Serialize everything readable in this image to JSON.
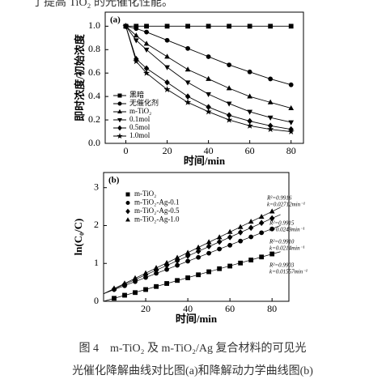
{
  "header_fragment": "了提高 TiO₂ 的光催化性能。",
  "chart_data": [
    {
      "type": "line",
      "panel_label": "(a)",
      "y_label": "即时浓度/初始浓度",
      "x_label": "时间/min",
      "x": [
        0,
        5,
        10,
        20,
        30,
        40,
        50,
        60,
        70,
        80
      ],
      "xlim": [
        -10,
        86
      ],
      "xticks": [
        0,
        20,
        40,
        60,
        80
      ],
      "ylim": [
        0,
        1.12
      ],
      "yticks": [
        {
          "value": 0,
          "label": "0.0"
        },
        {
          "value": 0.2,
          "label": "0.2"
        },
        {
          "value": 0.4,
          "label": "0.4"
        },
        {
          "value": 0.6,
          "label": "0.6"
        },
        {
          "value": 0.8,
          "label": "0.8"
        },
        {
          "value": 1.0,
          "label": "1.0"
        }
      ],
      "legend": "lower left",
      "series": [
        {
          "name": "黑暗",
          "color": "#000000",
          "marker": "square",
          "values": [
            1.0,
            1.0,
            1.0,
            1.0,
            1.0,
            1.0,
            1.0,
            1.0,
            1.0,
            1.0
          ]
        },
        {
          "name": "无催化剂",
          "color": "#000000",
          "marker": "circle",
          "values": [
            1.0,
            0.98,
            0.95,
            0.88,
            0.81,
            0.74,
            0.67,
            0.61,
            0.55,
            0.5
          ]
        },
        {
          "name": "m-TiO₂",
          "color": "#000000",
          "marker": "triangle-up",
          "values": [
            1.0,
            0.92,
            0.85,
            0.74,
            0.63,
            0.55,
            0.47,
            0.4,
            0.35,
            0.3
          ]
        },
        {
          "name": "0.1mol",
          "color": "#000000",
          "marker": "triangle-down",
          "values": [
            1.0,
            0.88,
            0.8,
            0.65,
            0.52,
            0.42,
            0.34,
            0.27,
            0.22,
            0.18
          ]
        },
        {
          "name": "0.5mol",
          "color": "#000000",
          "marker": "diamond",
          "values": [
            1.0,
            0.72,
            0.64,
            0.52,
            0.4,
            0.31,
            0.24,
            0.19,
            0.15,
            0.12
          ]
        },
        {
          "name": "1.0mol",
          "color": "#000000",
          "marker": "star",
          "values": [
            1.0,
            0.7,
            0.6,
            0.46,
            0.35,
            0.27,
            0.2,
            0.15,
            0.12,
            0.1
          ]
        }
      ]
    },
    {
      "type": "scatter",
      "panel_label": "(b)",
      "y_label": "ln(C₀/C)",
      "x_label": "时间/min",
      "x": [
        5,
        10,
        15,
        20,
        25,
        30,
        35,
        40,
        45,
        50,
        55,
        60,
        65,
        70,
        75,
        80
      ],
      "xlim": [
        0,
        88
      ],
      "xticks": [
        20,
        40,
        60,
        80
      ],
      "ylim": [
        0,
        3.4
      ],
      "yticks": [
        0,
        1,
        2,
        3
      ],
      "legend": "upper left",
      "series": [
        {
          "name": "m-TiO₂",
          "color": "#000000",
          "marker": "square",
          "values": [
            0.08,
            0.16,
            0.23,
            0.31,
            0.39,
            0.47,
            0.55,
            0.62,
            0.7,
            0.78,
            0.86,
            0.93,
            1.01,
            1.09,
            1.17,
            1.25
          ],
          "fit": {
            "x": [
              0,
              84
            ],
            "values": [
              0.0,
              1.31
            ]
          }
        },
        {
          "name": "m-TiO₂-Ag-0.1",
          "color": "#000000",
          "marker": "circle",
          "values": [
            0.31,
            0.41,
            0.52,
            0.63,
            0.74,
            0.84,
            0.95,
            1.06,
            1.16,
            1.27,
            1.38,
            1.48,
            1.59,
            1.7,
            1.81,
            1.91
          ],
          "fit": {
            "x": [
              0,
              84
            ],
            "values": [
              0.2,
              2.0
            ]
          }
        },
        {
          "name": "m-TiO₂-Ag-0.5",
          "color": "#000000",
          "marker": "diamond",
          "values": [
            0.32,
            0.45,
            0.57,
            0.7,
            0.82,
            0.95,
            1.07,
            1.2,
            1.32,
            1.45,
            1.57,
            1.69,
            1.82,
            1.94,
            2.07,
            2.19
          ],
          "fit": {
            "x": [
              0,
              84
            ],
            "values": [
              0.2,
              2.29
            ]
          }
        },
        {
          "name": "m-TiO₂-Ag-1.0",
          "color": "#000000",
          "marker": "triangle-up",
          "values": [
            0.34,
            0.47,
            0.61,
            0.74,
            0.88,
            1.01,
            1.15,
            1.28,
            1.42,
            1.56,
            1.69,
            1.83,
            1.96,
            2.1,
            2.23,
            2.37
          ],
          "fit": {
            "x": [
              0,
              84
            ],
            "values": [
              0.2,
              2.48
            ]
          }
        }
      ],
      "annotations": [
        {
          "r2": "R²=0.9916",
          "k": "k=0.02712min⁻¹"
        },
        {
          "r2": "R²=0.9915",
          "k": "k=0.0249min⁻¹"
        },
        {
          "r2": "R²=0.9910",
          "k": "k=0.0214min⁻¹"
        },
        {
          "r2": "R²=0.9903",
          "k": "k=0.01557min⁻¹"
        }
      ]
    }
  ],
  "caption": [
    "图 4　m-TiO₂ 及 m-TiO₂/Ag 复合材料的可见光",
    "光催化降解曲线对比图(a)和降解动力学曲线图(b)"
  ]
}
